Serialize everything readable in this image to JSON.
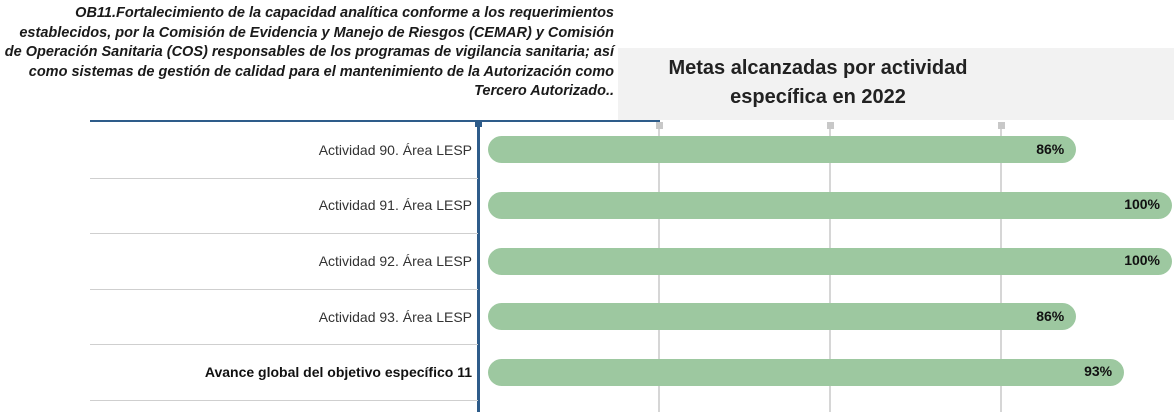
{
  "objective": "OB11.Fortalecimiento de la capacidad analítica conforme a los requerimientos establecidos, por la Comisión de Evidencia y Manejo de Riesgos (CEMAR) y Comisión de Operación Sanitaria (COS) responsables de los programas de vigilancia sanitaria; así como sistemas de gestión de calidad para el mantenimiento de la Autorización como Tercero Autorizado..",
  "chart_data": {
    "type": "bar",
    "orientation": "horizontal",
    "title": "Metas alcanzadas por actividad específica en 2022",
    "categories": [
      "Actividad 90. Área LESP",
      "Actividad 91. Área LESP",
      "Actividad 92. Área LESP",
      "Actividad 93. Área LESP",
      "Avance global del objetivo específico 11"
    ],
    "values": [
      86,
      100,
      100,
      86,
      93
    ],
    "value_labels": [
      "86%",
      "100%",
      "100%",
      "86%",
      "93%"
    ],
    "color": "#9dc8a0",
    "xlim": [
      0,
      100
    ],
    "xticks": [
      25,
      50,
      75
    ],
    "grid": true
  }
}
